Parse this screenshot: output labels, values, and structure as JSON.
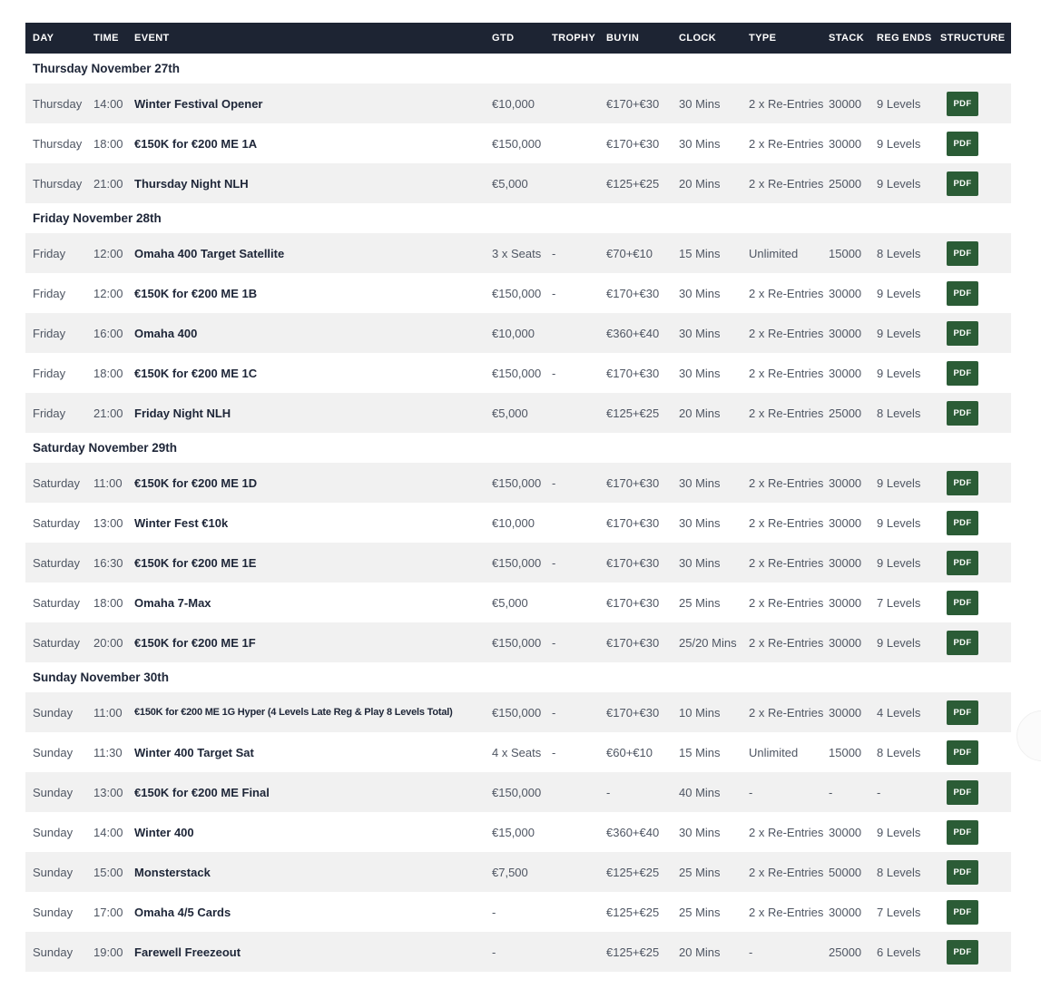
{
  "table": {
    "columns": [
      {
        "key": "day",
        "label": "DAY"
      },
      {
        "key": "time",
        "label": "TIME"
      },
      {
        "key": "event",
        "label": "EVENT"
      },
      {
        "key": "gtd",
        "label": "GTD"
      },
      {
        "key": "trophy",
        "label": "TROPHY"
      },
      {
        "key": "buyin",
        "label": "BUYIN"
      },
      {
        "key": "clock",
        "label": "CLOCK"
      },
      {
        "key": "type",
        "label": "TYPE"
      },
      {
        "key": "stack",
        "label": "STACK"
      },
      {
        "key": "reg_ends",
        "label": "REG ENDS"
      },
      {
        "key": "structure",
        "label": "STRUCTURE"
      }
    ],
    "pdf_button_label": "PDF",
    "colors": {
      "header_bg": "#1d2433",
      "header_text": "#ffffff",
      "row_stripe": "#f1f1f1",
      "event_text": "#1e2638",
      "cell_text": "#4f5663",
      "pdf_button_bg": "#2b5c36",
      "pdf_button_text": "#ffffff"
    },
    "sections": [
      {
        "title": "Thursday November 27th",
        "rows": [
          {
            "day": "Thursday",
            "time": "14:00",
            "event": "Winter Festival Opener",
            "gtd": "€10,000",
            "trophy": "",
            "buyin": "€170+€30",
            "clock": "30 Mins",
            "type": "2 x Re-Entries",
            "stack": "30000",
            "reg_ends": "9 Levels"
          },
          {
            "day": "Thursday",
            "time": "18:00",
            "event": "€150K for €200 ME 1A",
            "gtd": "€150,000",
            "trophy": "",
            "buyin": "€170+€30",
            "clock": "30 Mins",
            "type": "2 x Re-Entries",
            "stack": "30000",
            "reg_ends": "9 Levels"
          },
          {
            "day": "Thursday",
            "time": "21:00",
            "event": "Thursday Night NLH",
            "gtd": "€5,000",
            "trophy": "",
            "buyin": "€125+€25",
            "clock": "20 Mins",
            "type": "2 x Re-Entries",
            "stack": "25000",
            "reg_ends": "9 Levels"
          }
        ]
      },
      {
        "title": "Friday November 28th",
        "rows": [
          {
            "day": "Friday",
            "time": "12:00",
            "event": "Omaha 400 Target Satellite",
            "gtd": "3 x Seats",
            "trophy": "-",
            "buyin": "€70+€10",
            "clock": "15 Mins",
            "type": "Unlimited",
            "stack": "15000",
            "reg_ends": "8 Levels"
          },
          {
            "day": "Friday",
            "time": "12:00",
            "event": "€150K for €200 ME 1B",
            "gtd": "€150,000",
            "trophy": "-",
            "buyin": "€170+€30",
            "clock": "30 Mins",
            "type": "2 x Re-Entries",
            "stack": "30000",
            "reg_ends": "9 Levels"
          },
          {
            "day": "Friday",
            "time": "16:00",
            "event": "Omaha 400",
            "gtd": "€10,000",
            "trophy": "",
            "buyin": "€360+€40",
            "clock": "30 Mins",
            "type": "2 x Re-Entries",
            "stack": "30000",
            "reg_ends": "9 Levels"
          },
          {
            "day": "Friday",
            "time": "18:00",
            "event": "€150K for €200 ME 1C",
            "gtd": "€150,000",
            "trophy": "-",
            "buyin": "€170+€30",
            "clock": "30 Mins",
            "type": "2 x Re-Entries",
            "stack": "30000",
            "reg_ends": "9 Levels"
          },
          {
            "day": "Friday",
            "time": "21:00",
            "event": "Friday Night NLH",
            "gtd": "€5,000",
            "trophy": "",
            "buyin": "€125+€25",
            "clock": "20 Mins",
            "type": "2 x Re-Entries",
            "stack": "25000",
            "reg_ends": "8 Levels"
          }
        ]
      },
      {
        "title": "Saturday November 29th",
        "rows": [
          {
            "day": "Saturday",
            "time": "11:00",
            "event": "€150K for €200 ME 1D",
            "gtd": "€150,000",
            "trophy": "-",
            "buyin": "€170+€30",
            "clock": "30 Mins",
            "type": "2 x Re-Entries",
            "stack": "30000",
            "reg_ends": "9 Levels"
          },
          {
            "day": "Saturday",
            "time": "13:00",
            "event": "Winter Fest €10k",
            "gtd": "€10,000",
            "trophy": "",
            "buyin": "€170+€30",
            "clock": "30 Mins",
            "type": "2 x Re-Entries",
            "stack": "30000",
            "reg_ends": "9 Levels"
          },
          {
            "day": "Saturday",
            "time": "16:30",
            "event": "€150K for €200 ME 1E",
            "gtd": "€150,000",
            "trophy": "-",
            "buyin": "€170+€30",
            "clock": "30 Mins",
            "type": "2 x Re-Entries",
            "stack": "30000",
            "reg_ends": "9 Levels"
          },
          {
            "day": "Saturday",
            "time": "18:00",
            "event": "Omaha 7-Max",
            "gtd": "€5,000",
            "trophy": "",
            "buyin": "€170+€30",
            "clock": "25 Mins",
            "type": "2 x Re-Entries",
            "stack": "30000",
            "reg_ends": "7 Levels"
          },
          {
            "day": "Saturday",
            "time": "20:00",
            "event": "€150K for €200 ME 1F",
            "gtd": "€150,000",
            "trophy": "-",
            "buyin": "€170+€30",
            "clock": "25/20 Mins",
            "type": "2 x Re-Entries",
            "stack": "30000",
            "reg_ends": "9 Levels"
          }
        ]
      },
      {
        "title": "Sunday November 30th",
        "rows": [
          {
            "day": "Sunday",
            "time": "11:00",
            "event": "€150K for €200 ME 1G Hyper (4 Levels Late Reg & Play 8 Levels Total)",
            "gtd": "€150,000",
            "trophy": "-",
            "buyin": "€170+€30",
            "clock": "10 Mins",
            "type": "2 x Re-Entries",
            "stack": "30000",
            "reg_ends": "4 Levels"
          },
          {
            "day": "Sunday",
            "time": "11:30",
            "event": "Winter 400 Target Sat",
            "gtd": "4 x Seats",
            "trophy": "-",
            "buyin": "€60+€10",
            "clock": "15 Mins",
            "type": "Unlimited",
            "stack": "15000",
            "reg_ends": "8 Levels"
          },
          {
            "day": "Sunday",
            "time": "13:00",
            "event": "€150K for €200 ME Final",
            "gtd": "€150,000",
            "trophy": "",
            "buyin": "-",
            "clock": "40 Mins",
            "type": "-",
            "stack": "-",
            "reg_ends": "-"
          },
          {
            "day": "Sunday",
            "time": "14:00",
            "event": "Winter 400",
            "gtd": "€15,000",
            "trophy": "",
            "buyin": "€360+€40",
            "clock": "30 Mins",
            "type": "2 x Re-Entries",
            "stack": "30000",
            "reg_ends": "9 Levels"
          },
          {
            "day": "Sunday",
            "time": "15:00",
            "event": "Monsterstack",
            "gtd": "€7,500",
            "trophy": "",
            "buyin": "€125+€25",
            "clock": "25 Mins",
            "type": "2 x Re-Entries",
            "stack": "50000",
            "reg_ends": "8 Levels"
          },
          {
            "day": "Sunday",
            "time": "17:00",
            "event": "Omaha 4/5 Cards",
            "gtd": "-",
            "trophy": "",
            "buyin": "€125+€25",
            "clock": "25 Mins",
            "type": "2 x Re-Entries",
            "stack": "30000",
            "reg_ends": "7 Levels"
          },
          {
            "day": "Sunday",
            "time": "19:00",
            "event": "Farewell Freezeout",
            "gtd": "-",
            "trophy": "",
            "buyin": "€125+€25",
            "clock": "20 Mins",
            "type": "-",
            "stack": "25000",
            "reg_ends": "6 Levels"
          }
        ]
      }
    ]
  }
}
